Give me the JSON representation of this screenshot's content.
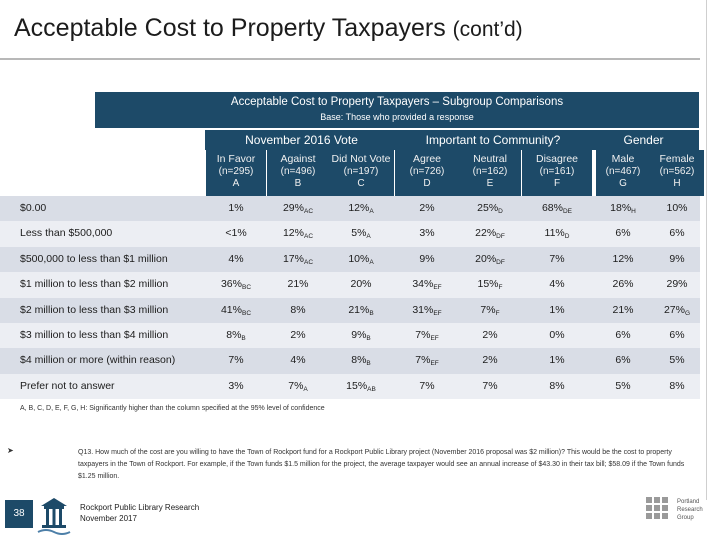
{
  "header": {
    "title": "Acceptable Cost to Property Taxpayers",
    "title_suffix": "(cont’d)"
  },
  "banner": {
    "title": "Acceptable Cost to Property Taxpayers – Subgroup Comparisons",
    "base": "Base: Those who provided a response"
  },
  "groups": [
    {
      "label": "November 2016 Vote"
    },
    {
      "label": "Important to Community?"
    },
    {
      "label": "Gender"
    }
  ],
  "columns": [
    {
      "name": "In Favor",
      "n": "(n=295)",
      "letter": "A"
    },
    {
      "name": "Against",
      "n": "(n=496)",
      "letter": "B"
    },
    {
      "name": "Did Not Vote",
      "n": "(n=197)",
      "letter": "C"
    },
    {
      "name": "Agree",
      "n": "(n=726)",
      "letter": "D"
    },
    {
      "name": "Neutral",
      "n": "(n=162)",
      "letter": "E"
    },
    {
      "name": "Disagree",
      "n": "(n=161)",
      "letter": "F"
    },
    {
      "name": "Male",
      "n": "(n=467)",
      "letter": "G"
    },
    {
      "name": "Female",
      "n": "(n=562)",
      "letter": "H"
    }
  ],
  "rows": [
    {
      "label": "$0.00",
      "cells": [
        {
          "v": "1%",
          "s": ""
        },
        {
          "v": "29%",
          "s": "AC"
        },
        {
          "v": "12%",
          "s": "A"
        },
        {
          "v": "2%",
          "s": ""
        },
        {
          "v": "25%",
          "s": "D"
        },
        {
          "v": "68%",
          "s": "DE"
        },
        {
          "v": "18%",
          "s": "H"
        },
        {
          "v": "10%",
          "s": ""
        }
      ]
    },
    {
      "label": "Less than $500,000",
      "cells": [
        {
          "v": "<1%",
          "s": ""
        },
        {
          "v": "12%",
          "s": "AC"
        },
        {
          "v": "5%",
          "s": "A"
        },
        {
          "v": "3%",
          "s": ""
        },
        {
          "v": "22%",
          "s": "DF"
        },
        {
          "v": "11%",
          "s": "D"
        },
        {
          "v": "6%",
          "s": ""
        },
        {
          "v": "6%",
          "s": ""
        }
      ]
    },
    {
      "label": "$500,000 to less than $1 million",
      "cells": [
        {
          "v": "4%",
          "s": ""
        },
        {
          "v": "17%",
          "s": "AC"
        },
        {
          "v": "10%",
          "s": "A"
        },
        {
          "v": "9%",
          "s": ""
        },
        {
          "v": "20%",
          "s": "DF"
        },
        {
          "v": "7%",
          "s": ""
        },
        {
          "v": "12%",
          "s": ""
        },
        {
          "v": "9%",
          "s": ""
        }
      ]
    },
    {
      "label": "$1 million to less than $2 million",
      "cells": [
        {
          "v": "36%",
          "s": "BC"
        },
        {
          "v": "21%",
          "s": ""
        },
        {
          "v": "20%",
          "s": ""
        },
        {
          "v": "34%",
          "s": "EF"
        },
        {
          "v": "15%",
          "s": "F"
        },
        {
          "v": "4%",
          "s": ""
        },
        {
          "v": "26%",
          "s": ""
        },
        {
          "v": "29%",
          "s": ""
        }
      ]
    },
    {
      "label": "$2 million to less than $3 million",
      "cells": [
        {
          "v": "41%",
          "s": "BC"
        },
        {
          "v": "8%",
          "s": ""
        },
        {
          "v": "21%",
          "s": "B"
        },
        {
          "v": "31%",
          "s": "EF"
        },
        {
          "v": "7%",
          "s": "F"
        },
        {
          "v": "1%",
          "s": ""
        },
        {
          "v": "21%",
          "s": ""
        },
        {
          "v": "27%",
          "s": "G"
        }
      ]
    },
    {
      "label": "$3 million to less than $4 million",
      "cells": [
        {
          "v": "8%",
          "s": "B"
        },
        {
          "v": "2%",
          "s": ""
        },
        {
          "v": "9%",
          "s": "B"
        },
        {
          "v": "7%",
          "s": "EF"
        },
        {
          "v": "2%",
          "s": ""
        },
        {
          "v": "0%",
          "s": ""
        },
        {
          "v": "6%",
          "s": ""
        },
        {
          "v": "6%",
          "s": ""
        }
      ]
    },
    {
      "label": "$4 million or more (within reason)",
      "cells": [
        {
          "v": "7%",
          "s": ""
        },
        {
          "v": "4%",
          "s": ""
        },
        {
          "v": "8%",
          "s": "B"
        },
        {
          "v": "7%",
          "s": "EF"
        },
        {
          "v": "2%",
          "s": ""
        },
        {
          "v": "1%",
          "s": ""
        },
        {
          "v": "6%",
          "s": ""
        },
        {
          "v": "5%",
          "s": ""
        }
      ]
    },
    {
      "label": "Prefer not to answer",
      "cells": [
        {
          "v": "3%",
          "s": ""
        },
        {
          "v": "7%",
          "s": "A"
        },
        {
          "v": "15%",
          "s": "AB"
        },
        {
          "v": "7%",
          "s": ""
        },
        {
          "v": "7%",
          "s": ""
        },
        {
          "v": "8%",
          "s": ""
        },
        {
          "v": "5%",
          "s": ""
        },
        {
          "v": "8%",
          "s": ""
        }
      ]
    }
  ],
  "footnote": "A, B, C, D, E, F, G, H: Significantly higher than the column specified at the 95% level of confidence",
  "question": "Q13. How much of the cost are you willing to have the Town of Rockport fund for a Rockport Public Library project (November 2016 proposal was $2 million)? This would be the cost to property taxpayers in the Town of Rockport. For example, if the Town funds $1.5 million for the project, the average taxpayer would see an annual increase of $43.30 in their tax bill; $58.09 if the Town funds $1.25 million.",
  "footer": {
    "page_number": "38",
    "line1": "Rockport Public Library Research",
    "line2": "November 2017",
    "prg_line1": "Portland",
    "prg_line2": "Research",
    "prg_line3": "Group"
  },
  "colors": {
    "header_bg": "#1d4a68",
    "row_alt": "#eceef3",
    "row_base": "#d9dde6"
  }
}
